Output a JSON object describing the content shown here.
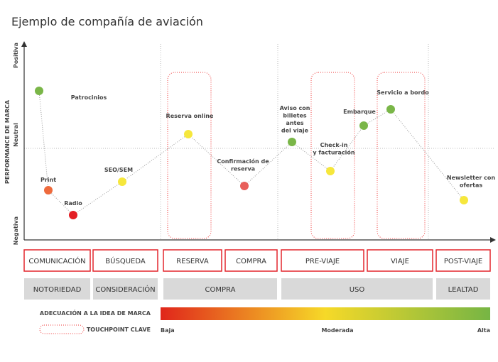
{
  "title": "Ejemplo de compañía de aviación",
  "y_axis": {
    "label": "PERFORMANCE DE MARCA",
    "top": "Positiva",
    "middle": "Neutral",
    "bottom": "Negativa"
  },
  "touchpoints": [
    {
      "label": [
        "Patrocinios"
      ],
      "color": "#7ab648"
    },
    {
      "label": [
        "Print"
      ],
      "color": "#ee6a3c"
    },
    {
      "label": [
        "Radio"
      ],
      "color": "#e31e24"
    },
    {
      "label": [
        "SEO/SEM"
      ],
      "color": "#f6e73c"
    },
    {
      "label": [
        "Reserva online"
      ],
      "color": "#f6e73c"
    },
    {
      "label": [
        "Confirmación de",
        "reserva"
      ],
      "color": "#e85f5a"
    },
    {
      "label": [
        "Aviso con",
        "billetes",
        "antes",
        "del viaje"
      ],
      "color": "#7ab648"
    },
    {
      "label": [
        "Check-in",
        "y facturación"
      ],
      "color": "#f6e73c"
    },
    {
      "label": [
        "Embarque"
      ],
      "color": "#7ab648"
    },
    {
      "label": [
        "Servicio a bordo"
      ],
      "color": "#7ab648"
    },
    {
      "label": [
        "Newsletter con",
        "ofertas"
      ],
      "color": "#f6e73c"
    }
  ],
  "stages": [
    "COMUNICACIÓN",
    "BÚSQUEDA",
    "RESERVA",
    "COMPRA",
    "PRE-VIAJE",
    "VIAJE",
    "POST-VIAJE"
  ],
  "phases": [
    "NOTORIEDAD",
    "CONSIDERACIÓN",
    "COMPRA",
    "USO",
    "LEALTAD"
  ],
  "legend": {
    "gradient_label": "ADECUACIÓN A LA IDEA DE MARCA",
    "low": "Baja",
    "mid": "Moderada",
    "high": "Alta",
    "key_label": "TOUCHPOINT CLAVE"
  }
}
